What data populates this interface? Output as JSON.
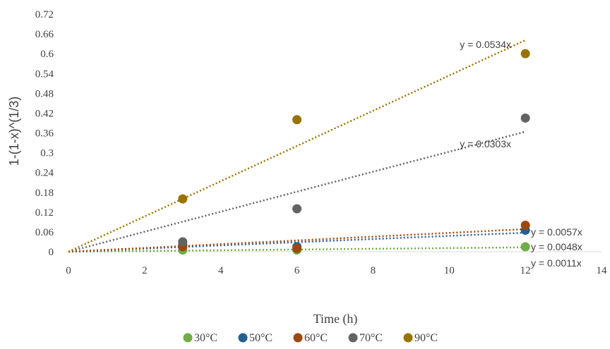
{
  "chart_data": {
    "type": "scatter",
    "title": "",
    "xlabel": "Time (h)",
    "ylabel": "1-(1-x)^(1/3)",
    "xlim": [
      0,
      14
    ],
    "ylim": [
      0,
      0.72
    ],
    "xticks": [
      "0",
      "2",
      "4",
      "6",
      "8",
      "10",
      "12",
      "14"
    ],
    "yticks": [
      "0",
      "0.06",
      "0.12",
      "0.18",
      "0.24",
      "0.3",
      "0.36",
      "0.42",
      "0.48",
      "0.54",
      "0.6",
      "0.66",
      "0.72"
    ],
    "grid": false,
    "legend_position": "bottom",
    "series": [
      {
        "name": "30°C",
        "color": "#70ad47",
        "x": [
          3,
          6,
          12
        ],
        "y": [
          0.005,
          0.005,
          0.015
        ],
        "trendline": {
          "slope": 0.0011,
          "label": "y = 0.0011x"
        }
      },
      {
        "name": "50°C",
        "color": "#255e91",
        "x": [
          3,
          6,
          12
        ],
        "y": [
          0.02,
          0.015,
          0.065
        ],
        "trendline": {
          "slope": 0.0048,
          "label": "y = 0.0048x"
        }
      },
      {
        "name": "60°C",
        "color": "#9e480e",
        "x": [
          3,
          6,
          12
        ],
        "y": [
          0.015,
          0.01,
          0.08
        ],
        "trendline": {
          "slope": 0.0057,
          "label": "y = 0.0057x"
        }
      },
      {
        "name": "70°C",
        "color": "#636363",
        "x": [
          3,
          6,
          12
        ],
        "y": [
          0.03,
          0.13,
          0.405
        ],
        "trendline": {
          "slope": 0.0303,
          "label": "y = 0.0303x"
        }
      },
      {
        "name": "90°C",
        "color": "#997300",
        "x": [
          3,
          6,
          12
        ],
        "y": [
          0.16,
          0.4,
          0.6
        ],
        "trendline": {
          "slope": 0.0534,
          "label": "y = 0.0534x"
        }
      }
    ]
  }
}
